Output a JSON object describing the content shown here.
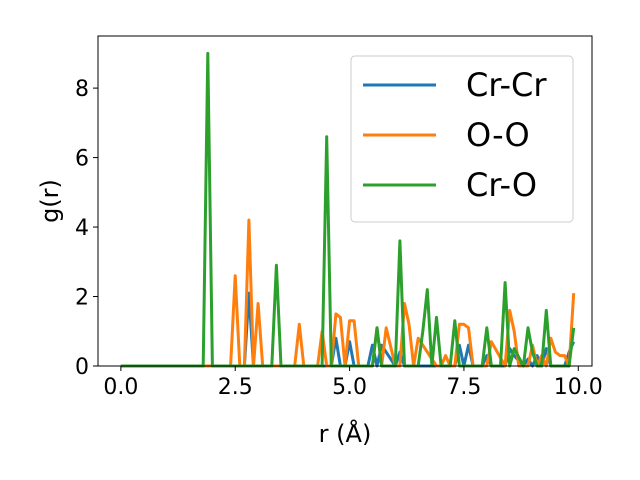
{
  "chart_data": {
    "type": "line",
    "xlabel": "r (Å)",
    "ylabel": "g(r)",
    "xlim": [
      -0.5,
      10.3
    ],
    "ylim": [
      0,
      9.5
    ],
    "xticks": [
      0.0,
      2.5,
      5.0,
      7.5,
      10.0
    ],
    "xtick_labels": [
      "0.0",
      "2.5",
      "5.0",
      "7.5",
      "10.0"
    ],
    "yticks": [
      0,
      2,
      4,
      6,
      8
    ],
    "ytick_labels": [
      "0",
      "2",
      "4",
      "6",
      "8"
    ],
    "grid": false,
    "legend": "top-right",
    "series": [
      {
        "name": "Cr-Cr",
        "color": "#1f77b4",
        "x": [
          0.0,
          1.8,
          2.7,
          2.8,
          2.9,
          4.6,
          4.7,
          4.8,
          4.9,
          5.0,
          5.1,
          5.4,
          5.5,
          5.6,
          5.7,
          6.0,
          6.1,
          6.2,
          6.3,
          6.9,
          7.0,
          7.3,
          7.4,
          7.5,
          7.6,
          7.7,
          7.9,
          8.0,
          8.1,
          8.4,
          8.5,
          8.6,
          8.8,
          8.9,
          9.0,
          9.1,
          9.2,
          9.3,
          9.4,
          9.5,
          9.7,
          9.8,
          9.9
        ],
        "y": [
          0.0,
          0.0,
          0.0,
          2.1,
          0.0,
          0.0,
          0.8,
          0.0,
          0.0,
          0.7,
          0.0,
          0.0,
          0.6,
          0.0,
          0.6,
          0.0,
          0.4,
          0.0,
          0.0,
          0.0,
          0.0,
          0.0,
          0.6,
          0.0,
          0.6,
          0.0,
          0.0,
          0.3,
          0.0,
          0.0,
          0.5,
          0.3,
          0.0,
          0.2,
          0.0,
          0.3,
          0.0,
          0.5,
          0.0,
          0.0,
          0.0,
          0.4,
          0.7
        ]
      },
      {
        "name": "O-O",
        "color": "#ff7f0e",
        "x": [
          0.0,
          2.4,
          2.5,
          2.6,
          2.7,
          2.8,
          2.9,
          3.0,
          3.1,
          3.8,
          3.9,
          4.0,
          4.3,
          4.4,
          4.5,
          4.6,
          4.7,
          4.8,
          4.9,
          5.0,
          5.1,
          5.2,
          5.5,
          5.6,
          5.7,
          5.8,
          6.0,
          6.1,
          6.2,
          6.3,
          6.4,
          6.5,
          6.9,
          7.0,
          7.1,
          7.2,
          7.3,
          7.4,
          7.5,
          7.6,
          7.7,
          8.0,
          8.1,
          8.4,
          8.5,
          8.6,
          8.7,
          8.9,
          9.0,
          9.1,
          9.2,
          9.3,
          9.4,
          9.5,
          9.6,
          9.7,
          9.8,
          9.9
        ],
        "y": [
          0.0,
          0.0,
          2.6,
          0.0,
          0.0,
          4.2,
          0.0,
          1.8,
          0.0,
          0.0,
          1.2,
          0.0,
          0.0,
          1.0,
          0.0,
          0.0,
          1.5,
          1.4,
          0.0,
          1.3,
          1.3,
          0.0,
          0.0,
          1.1,
          0.0,
          1.1,
          0.0,
          0.0,
          1.8,
          1.2,
          0.0,
          0.8,
          0.0,
          0.0,
          0.3,
          0.0,
          0.0,
          1.2,
          1.2,
          1.1,
          0.0,
          0.0,
          0.7,
          0.0,
          1.6,
          1.0,
          0.0,
          0.0,
          0.6,
          0.0,
          0.3,
          0.0,
          0.8,
          0.4,
          0.3,
          0.3,
          0.0,
          2.1
        ]
      },
      {
        "name": "Cr-O",
        "color": "#2ca02c",
        "x": [
          0.0,
          1.8,
          1.9,
          2.0,
          3.3,
          3.4,
          3.5,
          4.4,
          4.5,
          4.6,
          5.5,
          5.6,
          5.7,
          6.0,
          6.1,
          6.2,
          6.5,
          6.6,
          6.7,
          6.8,
          6.9,
          7.0,
          7.2,
          7.3,
          7.4,
          7.9,
          8.0,
          8.1,
          8.3,
          8.4,
          8.5,
          8.6,
          8.8,
          8.9,
          9.0,
          9.1,
          9.2,
          9.3,
          9.4,
          9.7,
          9.8,
          9.9
        ],
        "y": [
          0.0,
          0.0,
          9.0,
          0.0,
          0.0,
          2.9,
          0.0,
          0.0,
          6.6,
          0.0,
          0.0,
          1.1,
          0.0,
          0.0,
          3.6,
          0.0,
          0.0,
          1.0,
          2.2,
          0.0,
          1.4,
          0.0,
          0.0,
          1.3,
          0.0,
          0.0,
          1.1,
          0.0,
          0.0,
          2.4,
          0.0,
          0.5,
          0.0,
          1.1,
          0.4,
          0.0,
          0.0,
          1.6,
          0.0,
          0.0,
          0.0,
          1.1
        ]
      }
    ]
  }
}
